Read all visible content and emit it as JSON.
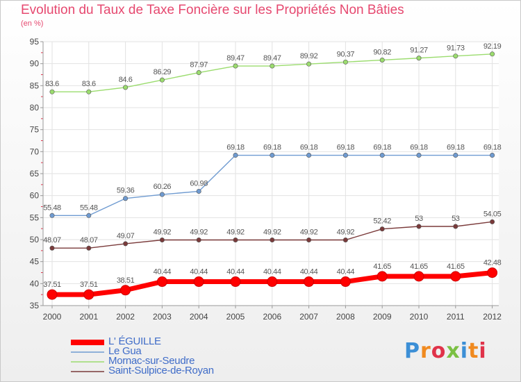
{
  "title": "Evolution du Taux de Taxe Foncière sur les Propriétés Non Bâties",
  "subtitle": "(en %)",
  "brand": "Proxiti",
  "chart_data": {
    "type": "line",
    "title": "Evolution du Taux de Taxe Foncière sur les Propriétés Non Bâties",
    "ylabel": "(en %)",
    "xlabel": "",
    "x": [
      "2000",
      "2001",
      "2002",
      "2003",
      "2004",
      "2005",
      "2006",
      "2007",
      "2008",
      "2009",
      "2010",
      "2011",
      "2012"
    ],
    "ylim": [
      35,
      95
    ],
    "yticks": [
      35,
      40,
      45,
      50,
      55,
      60,
      65,
      70,
      75,
      80,
      85,
      90,
      95
    ],
    "grid": true,
    "legend": "bottom-left",
    "series": [
      {
        "name": "L' ÉGUILLE",
        "color": "#ff0000",
        "labels": [
          "37.51",
          "37.51",
          "38.51",
          "40.44",
          "40.44",
          "40.44",
          "40.44",
          "40.44",
          "40.44",
          "41.65",
          "41.65",
          "41.65",
          "42.48"
        ],
        "values": [
          37.51,
          37.51,
          38.51,
          40.44,
          40.44,
          40.44,
          40.44,
          40.44,
          40.44,
          41.65,
          41.65,
          41.65,
          42.48
        ]
      },
      {
        "name": "Le Gua",
        "color": "#6f9bd1",
        "labels": [
          "55.48",
          "55.48",
          "59.36",
          "60.26",
          "60.98",
          "69.18",
          "69.18",
          "69.18",
          "69.18",
          "69.18",
          "69.18",
          "69.18",
          "69.18"
        ],
        "values": [
          55.48,
          55.48,
          59.36,
          60.26,
          60.98,
          69.18,
          69.18,
          69.18,
          69.18,
          69.18,
          69.18,
          69.18,
          69.18
        ]
      },
      {
        "name": "Mornac-sur-Seudre",
        "color": "#9bdc6e",
        "labels": [
          "83.6",
          "83.6",
          "84.6",
          "86.29",
          "87.97",
          "89.47",
          "89.47",
          "89.92",
          "90.37",
          "90.82",
          "91.27",
          "91.73",
          "92.19"
        ],
        "values": [
          83.6,
          83.6,
          84.6,
          86.29,
          87.97,
          89.47,
          89.47,
          89.92,
          90.37,
          90.82,
          91.27,
          91.73,
          92.19
        ]
      },
      {
        "name": "Saint-Sulpice-de-Royan",
        "color": "#7a3a3a",
        "labels": [
          "48.07",
          "48.07",
          "49.07",
          "49.92",
          "49.92",
          "49.92",
          "49.92",
          "49.92",
          "49.92",
          "52.42",
          "53",
          "53",
          "54.05"
        ],
        "values": [
          48.07,
          48.07,
          49.07,
          49.92,
          49.92,
          49.92,
          49.92,
          49.92,
          49.92,
          52.42,
          53,
          53,
          54.05
        ]
      }
    ]
  },
  "legend": [
    {
      "label": "L' ÉGUILLE"
    },
    {
      "label": "Le Gua"
    },
    {
      "label": "Mornac-sur-Seudre"
    },
    {
      "label": "Saint-Sulpice-de-Royan"
    }
  ]
}
